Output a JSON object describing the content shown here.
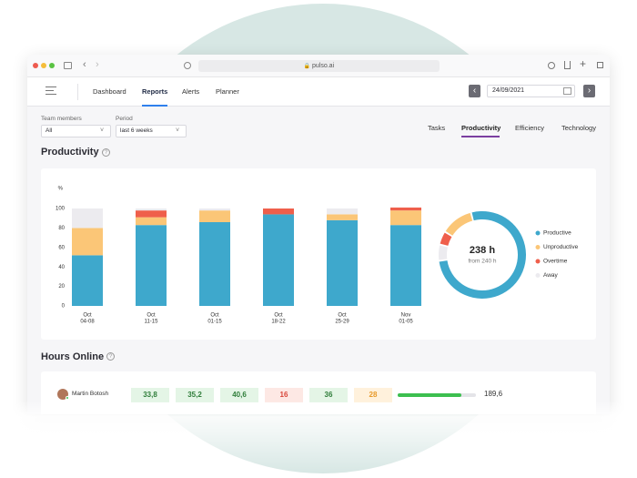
{
  "browser": {
    "url": "pulso.ai"
  },
  "nav": {
    "items": [
      "Dashboard",
      "Reports",
      "Alerts",
      "Planner"
    ],
    "active": 1,
    "date": "24/09/2021"
  },
  "filters": [
    {
      "label": "Team members",
      "value": "All"
    },
    {
      "label": "Period",
      "value": "last 6 weeks"
    }
  ],
  "tabs": {
    "items": [
      "Tasks",
      "Productivity",
      "Efficiency",
      "Technology"
    ],
    "active": 1
  },
  "productivity": {
    "title": "Productivity",
    "chart_data": {
      "type": "stacked_bar",
      "y_label": "%",
      "categories": [
        [
          "Oct",
          "04-08"
        ],
        [
          "Oct",
          "11-15"
        ],
        [
          "Oct",
          "01-15"
        ],
        [
          "Oct",
          "18-22"
        ],
        [
          "Oct",
          "25-29"
        ],
        [
          "Nov",
          "01-05"
        ]
      ],
      "series": [
        {
          "name": "Productive",
          "color": "#3ea8cc",
          "values": [
            52,
            83,
            86,
            94,
            88,
            83
          ]
        },
        {
          "name": "Unproductive",
          "color": "#fbc677",
          "values": [
            28,
            8,
            12,
            0,
            6,
            15
          ]
        },
        {
          "name": "Overtime",
          "color": "#ef5f4b",
          "values": [
            0,
            7,
            0,
            6,
            0,
            3
          ]
        },
        {
          "name": "Away",
          "color": "#ecebef",
          "values": [
            20,
            2,
            2,
            0,
            6,
            0
          ]
        }
      ],
      "ylim": [
        0,
        100
      ],
      "yticks": [
        0,
        20,
        40,
        60,
        80,
        100
      ]
    },
    "donut": {
      "type": "donut",
      "values": [
        77,
        12,
        5,
        6
      ],
      "center_value": "238 h",
      "center_note": "from 240 h"
    }
  },
  "hours_online": {
    "title": "Hours Online",
    "rows": [
      {
        "name": "Martin Botosh",
        "cells": [
          "33,8",
          "35,2",
          "40,6",
          "16",
          "36",
          "28"
        ],
        "cell_colors": [
          "green",
          "green",
          "green",
          "red",
          "green",
          "orange"
        ],
        "total": "189,6"
      }
    ]
  }
}
